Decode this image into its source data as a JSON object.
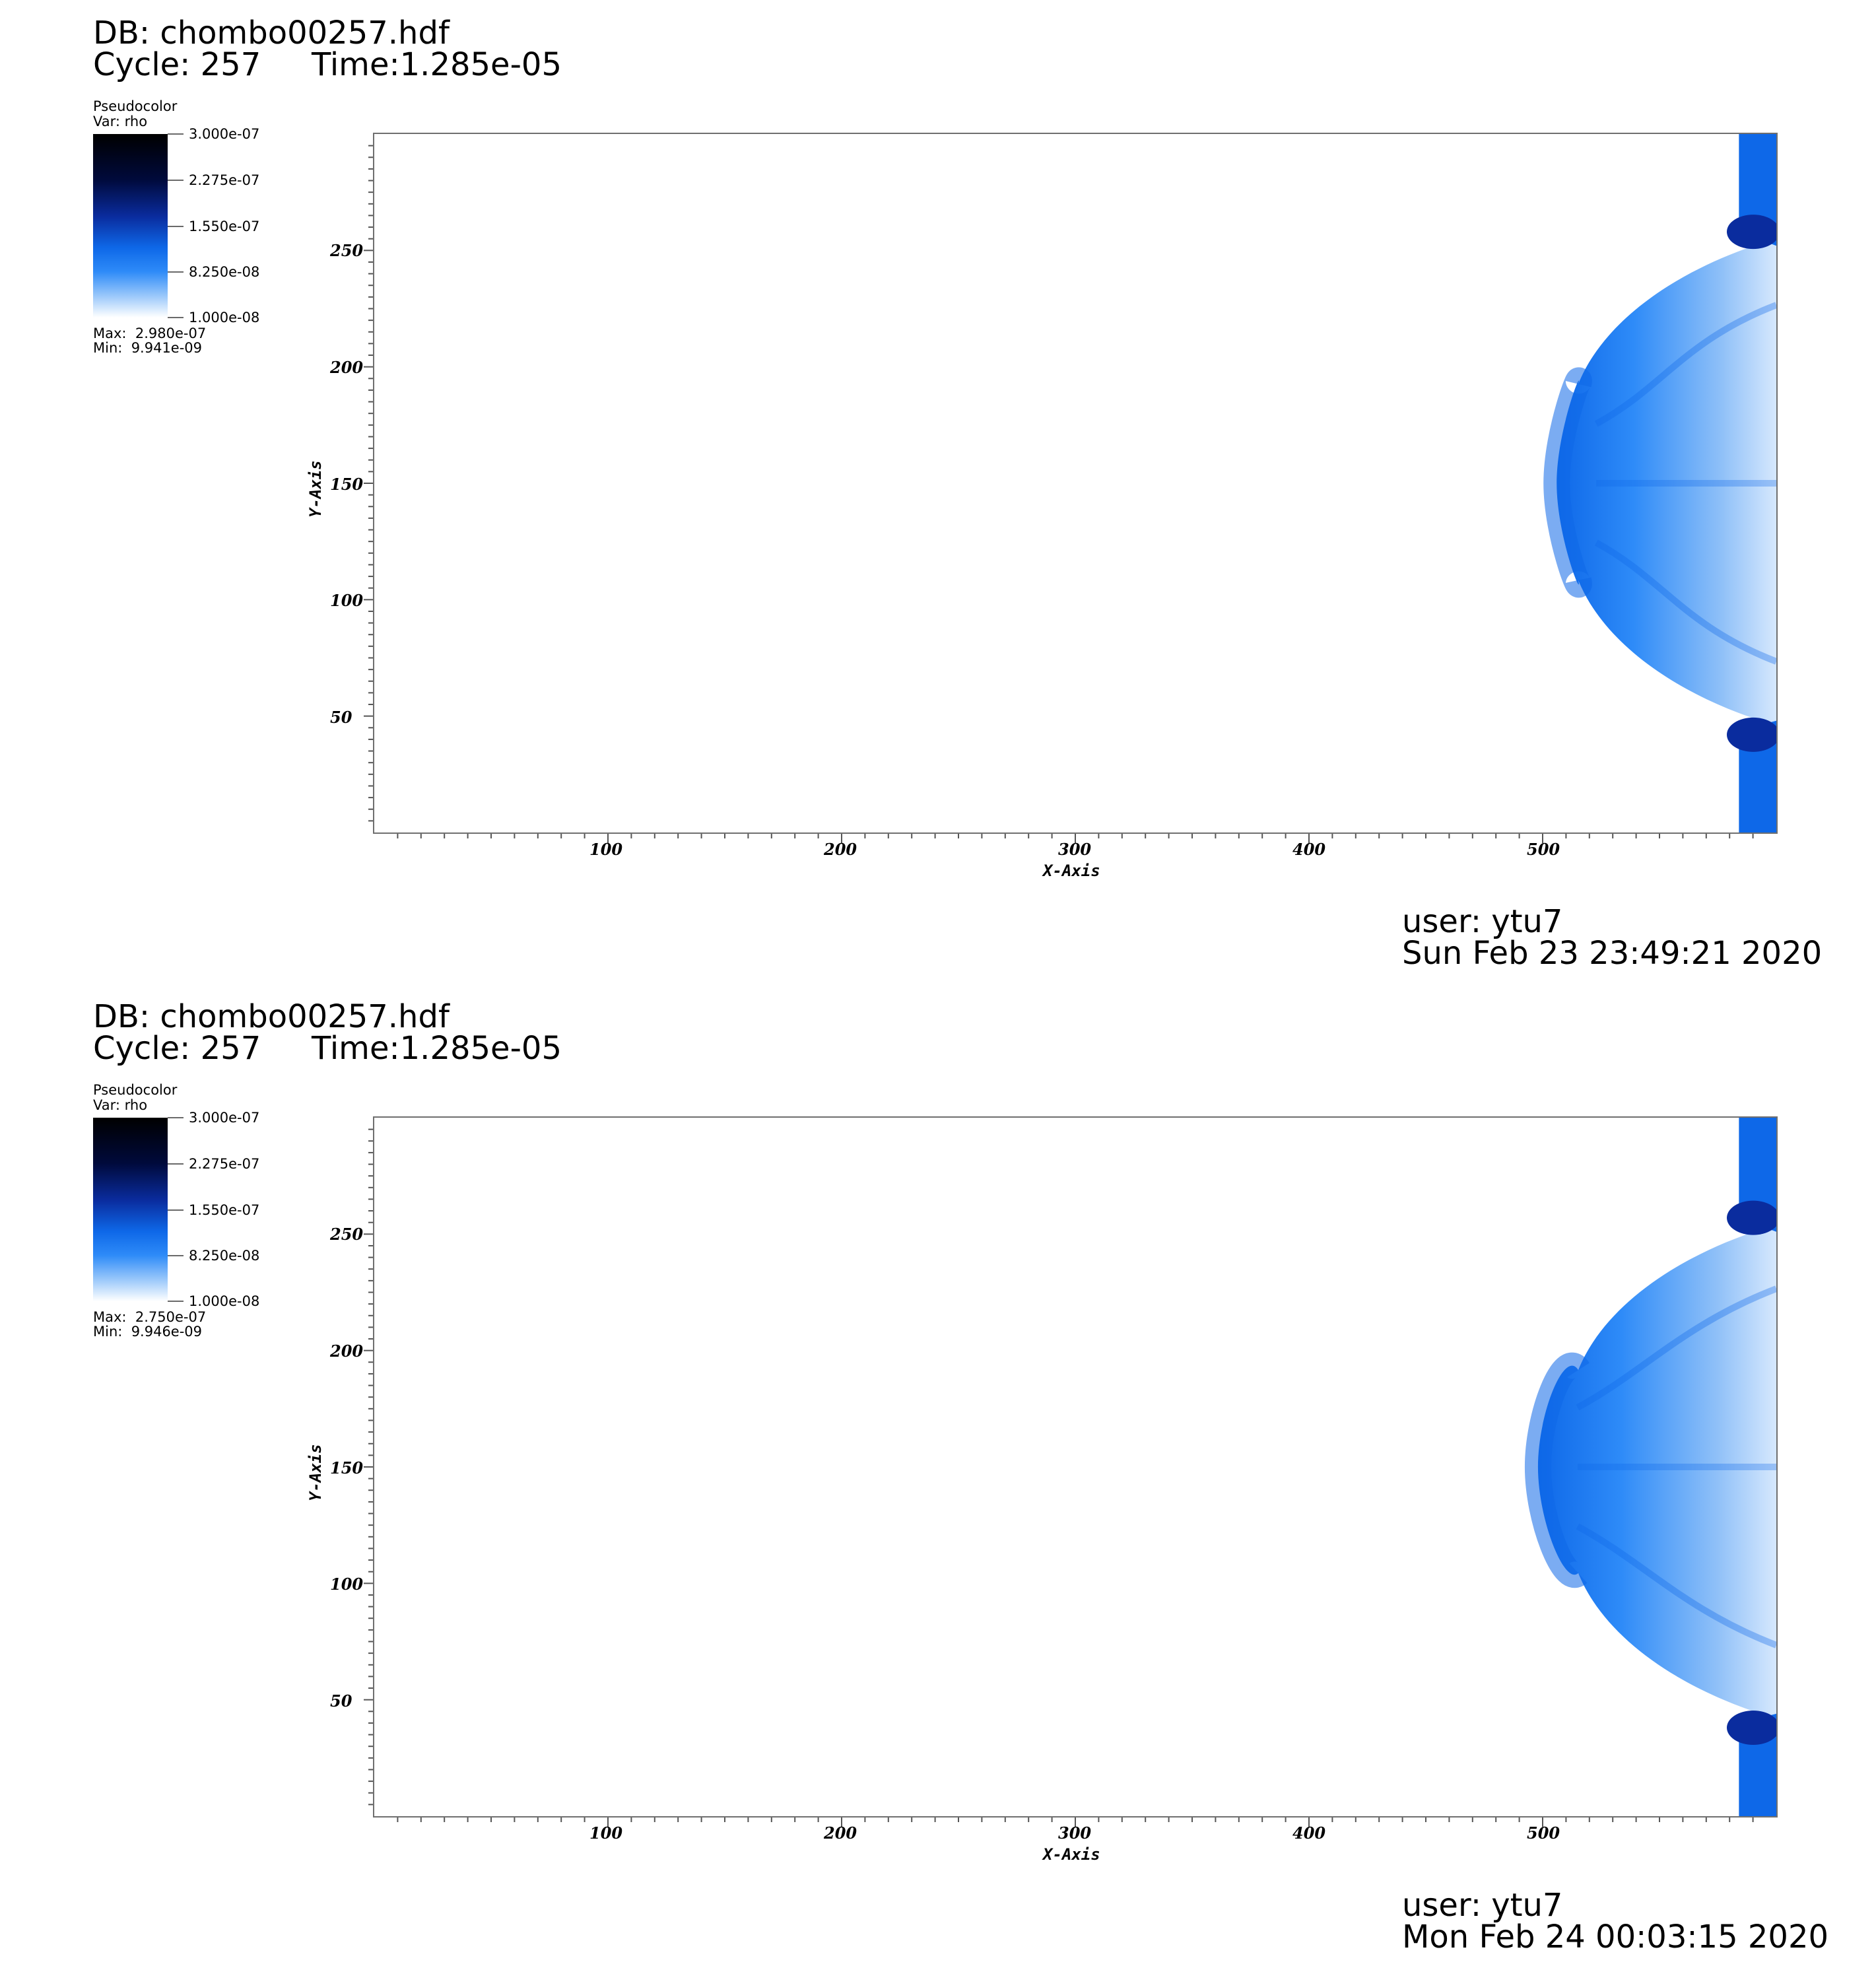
{
  "panels": [
    {
      "db_label": "DB: chombo00257.hdf",
      "cycle_label": "Cycle: 257",
      "time_label": "Time:1.285e-05",
      "legend": {
        "plot_type": "Pseudocolor",
        "var_label": "Var: rho",
        "ticks": [
          "3.000e-07",
          "2.275e-07",
          "1.550e-07",
          "8.250e-08",
          "1.000e-08"
        ],
        "max_label": "Max:  2.980e-07",
        "min_label": "Min:  9.941e-09"
      },
      "user_label": "user: ytu7",
      "date_label": "Sun Feb 23 23:49:21 2020"
    },
    {
      "db_label": "DB: chombo00257.hdf",
      "cycle_label": "Cycle: 257",
      "time_label": "Time:1.285e-05",
      "legend": {
        "plot_type": "Pseudocolor",
        "var_label": "Var: rho",
        "ticks": [
          "3.000e-07",
          "2.275e-07",
          "1.550e-07",
          "8.250e-08",
          "1.000e-08"
        ],
        "max_label": "Max:  2.750e-07",
        "min_label": "Min:  9.946e-09"
      },
      "user_label": "user: ytu7",
      "date_label": "Mon Feb 24 00:03:15 2020"
    }
  ],
  "chart_data": [
    {
      "type": "heatmap",
      "variable": "rho",
      "xlabel": "X-Axis",
      "ylabel": "Y-Axis",
      "xlim": [
        0,
        600
      ],
      "ylim": [
        0,
        300
      ],
      "xticks": [
        "100",
        "200",
        "300",
        "400",
        "500"
      ],
      "yticks": [
        "50",
        "100",
        "150",
        "200",
        "250"
      ],
      "color_range": [
        1e-08,
        3e-07
      ],
      "colormap": [
        "#ffffff",
        "#2e8bf8",
        "#0e68e8",
        "#0a2c9e",
        "#000000"
      ],
      "shock_front": {
        "tip_x": 506,
        "tip_y": 150,
        "upper_clump": [
          [
            584,
            300
          ],
          [
            584,
            258
          ],
          [
            592,
            255
          ],
          [
            600,
            252
          ]
        ],
        "lower_clump": [
          [
            584,
            0
          ],
          [
            584,
            42
          ],
          [
            592,
            46
          ],
          [
            600,
            48
          ]
        ]
      }
    },
    {
      "type": "heatmap",
      "variable": "rho",
      "xlabel": "X-Axis",
      "ylabel": "Y-Axis",
      "xlim": [
        0,
        600
      ],
      "ylim": [
        0,
        300
      ],
      "xticks": [
        "100",
        "200",
        "300",
        "400",
        "500"
      ],
      "yticks": [
        "50",
        "100",
        "150",
        "200",
        "250"
      ],
      "color_range": [
        1e-08,
        3e-07
      ],
      "colormap": [
        "#ffffff",
        "#2e8bf8",
        "#0e68e8",
        "#0a2c9e",
        "#000000"
      ],
      "shock_front": {
        "tip_x": 498,
        "tip_y": 150,
        "upper_clump": [
          [
            584,
            300
          ],
          [
            584,
            257
          ],
          [
            592,
            254
          ],
          [
            600,
            251
          ]
        ],
        "lower_clump": [
          [
            584,
            0
          ],
          [
            584,
            38
          ],
          [
            592,
            42
          ],
          [
            600,
            44
          ]
        ]
      }
    }
  ]
}
